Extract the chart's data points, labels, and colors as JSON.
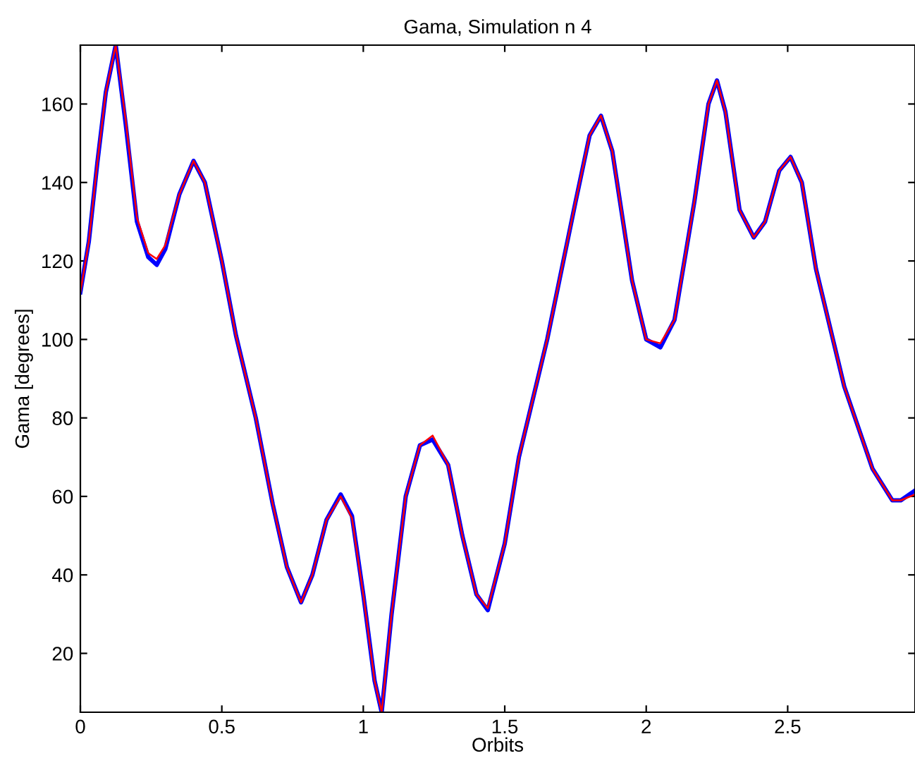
{
  "chart_data": {
    "type": "line",
    "title": "Gama, Simulation n 4",
    "xlabel": "Orbits",
    "ylabel": "Gama [degrees]",
    "xlim": [
      0,
      2.95
    ],
    "ylim": [
      5,
      175
    ],
    "xticks": [
      0,
      0.5,
      1,
      1.5,
      2,
      2.5
    ],
    "yticks": [
      20,
      40,
      60,
      80,
      100,
      120,
      140,
      160
    ],
    "grid": false,
    "marker": "none",
    "line_style": "solid",
    "series": [
      {
        "color": "#0000ff",
        "x": [
          0,
          0.03,
          0.06,
          0.09,
          0.125,
          0.16,
          0.2,
          0.24,
          0.27,
          0.3,
          0.35,
          0.4,
          0.44,
          0.5,
          0.55,
          0.62,
          0.68,
          0.73,
          0.78,
          0.82,
          0.87,
          0.92,
          0.96,
          1.0,
          1.04,
          1.065,
          1.1,
          1.15,
          1.2,
          1.245,
          1.3,
          1.35,
          1.4,
          1.44,
          1.5,
          1.55,
          1.65,
          1.75,
          1.8,
          1.84,
          1.88,
          1.95,
          2.0,
          2.05,
          2.1,
          2.17,
          2.22,
          2.25,
          2.28,
          2.33,
          2.38,
          2.42,
          2.47,
          2.51,
          2.55,
          2.6,
          2.7,
          2.8,
          2.87,
          2.9,
          2.95
        ],
        "values": [
          112,
          125,
          145,
          163,
          175,
          155,
          130,
          121,
          119,
          123,
          137,
          145.5,
          140,
          120,
          101,
          80,
          58,
          42,
          33,
          40,
          54,
          60.5,
          55,
          35,
          13,
          5,
          30,
          60,
          73,
          74.5,
          68,
          50,
          35,
          31,
          48,
          70,
          100,
          135,
          152,
          157,
          148,
          115,
          100,
          98,
          105,
          135,
          160,
          166,
          158,
          133,
          126,
          130,
          143,
          146.5,
          140,
          118,
          88,
          67,
          59,
          59,
          61.5
        ]
      },
      {
        "color": "#ff0000",
        "x": [
          0,
          0.03,
          0.06,
          0.09,
          0.125,
          0.16,
          0.2,
          0.24,
          0.27,
          0.3,
          0.35,
          0.4,
          0.44,
          0.5,
          0.55,
          0.62,
          0.68,
          0.73,
          0.78,
          0.82,
          0.87,
          0.92,
          0.96,
          1.0,
          1.04,
          1.065,
          1.1,
          1.15,
          1.2,
          1.245,
          1.3,
          1.35,
          1.4,
          1.44,
          1.5,
          1.55,
          1.65,
          1.75,
          1.8,
          1.84,
          1.88,
          1.95,
          2.0,
          2.05,
          2.1,
          2.17,
          2.22,
          2.25,
          2.28,
          2.33,
          2.38,
          2.42,
          2.47,
          2.51,
          2.55,
          2.6,
          2.7,
          2.8,
          2.87,
          2.9,
          2.95
        ],
        "values": [
          112,
          125,
          145,
          163,
          175,
          156,
          131,
          122,
          120.5,
          124,
          137,
          145.5,
          140,
          120,
          101,
          80,
          58,
          42,
          33,
          40,
          54,
          60,
          54.5,
          35,
          13,
          5,
          30,
          60,
          73,
          75.5,
          68,
          50,
          35,
          31.5,
          48,
          70,
          100,
          135,
          152,
          157,
          148,
          115,
          100,
          99,
          105,
          135,
          160,
          166,
          158,
          133,
          126,
          130,
          143,
          146.5,
          140,
          118,
          88,
          67,
          59,
          59,
          60.5
        ]
      }
    ]
  }
}
